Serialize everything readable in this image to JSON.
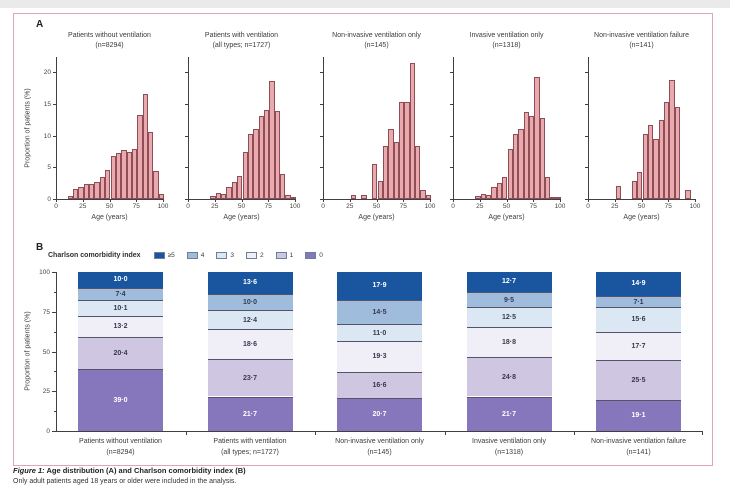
{
  "page": {
    "panel_a_label": "A",
    "panel_b_label": "B",
    "caption": {
      "figure_label": "Figure 1:",
      "title": " Age distribution (A) and Charlson comorbidity index (B)",
      "note": "Only adult patients aged 18 years or older were included in the analysis."
    }
  },
  "colors": {
    "figure_border": "#dfa6b0",
    "histogram_fill": "#e9a9ad",
    "histogram_stroke": "#8e4e58",
    "axis": "#404040",
    "cci_ge5": "#1a56a0",
    "cci_4": "#9fbcdc",
    "cci_3": "#dbe7f3",
    "cci_2": "#f0eef7",
    "cci_1": "#cfc6e2",
    "cci_0": "#8677bd",
    "segment_divider": "#53536a"
  },
  "chart_data": [
    {
      "type": "bar",
      "subtype": "histogram_small_multiples",
      "xlabel": "Age (years)",
      "ylabel": "Proportion of patients (%)",
      "xlim": [
        0,
        100
      ],
      "ylim": [
        0,
        22.5
      ],
      "xticks": [
        0,
        25,
        50,
        75,
        100
      ],
      "yticks": [
        0,
        5,
        10,
        15,
        20
      ],
      "bin_width_years": 5,
      "grid": false,
      "panels": [
        {
          "title": "Patients without ventilation",
          "subtitle": "(n=8294)",
          "bin_starts": [
            10,
            15,
            20,
            25,
            30,
            35,
            40,
            45,
            50,
            55,
            60,
            65,
            70,
            75,
            80,
            85,
            90,
            95
          ],
          "values_pct": [
            0.4,
            1.5,
            1.9,
            2.3,
            2.4,
            2.7,
            3.5,
            4.6,
            6.8,
            7.3,
            7.7,
            7.4,
            7.8,
            13.2,
            16.5,
            10.6,
            4.4,
            0.8
          ]
        },
        {
          "title": "Patients with ventilation",
          "subtitle": "(all types; n=1727)",
          "bin_starts": [
            20,
            25,
            30,
            35,
            40,
            45,
            50,
            55,
            60,
            65,
            70,
            75,
            80,
            85,
            90,
            95
          ],
          "values_pct": [
            0.5,
            0.9,
            0.8,
            1.9,
            2.7,
            3.7,
            7.4,
            10.2,
            11.1,
            13.0,
            14.0,
            18.6,
            13.9,
            4.0,
            0.7,
            0.3
          ]
        },
        {
          "title": "Non-invasive ventilation only",
          "subtitle": "(n=145)",
          "bin_starts": [
            25,
            30,
            35,
            40,
            45,
            50,
            55,
            60,
            65,
            70,
            75,
            80,
            85,
            90,
            95
          ],
          "values_pct": [
            0.7,
            0,
            0.7,
            0,
            5.5,
            2.8,
            8.3,
            11.0,
            9.0,
            15.2,
            15.2,
            21.4,
            8.3,
            1.4,
            0.7
          ]
        },
        {
          "title": "Invasive ventilation only",
          "subtitle": "(n=1318)",
          "bin_starts": [
            20,
            25,
            30,
            35,
            40,
            45,
            50,
            55,
            60,
            65,
            70,
            75,
            80,
            85,
            90,
            95
          ],
          "values_pct": [
            0.4,
            0.8,
            0.6,
            1.9,
            2.6,
            3.5,
            7.9,
            10.2,
            11.0,
            13.7,
            13.1,
            19.2,
            12.7,
            3.4,
            0.3,
            0.1
          ]
        },
        {
          "title": "Non-invasive ventilation failure",
          "subtitle": "(n=141)",
          "bin_starts": [
            25,
            30,
            35,
            40,
            45,
            50,
            55,
            60,
            65,
            70,
            75,
            80,
            85,
            90
          ],
          "values_pct": [
            2.1,
            0,
            0,
            2.8,
            4.3,
            10.2,
            11.7,
            9.5,
            12.4,
            15.2,
            18.8,
            14.5,
            0,
            1.4
          ]
        }
      ]
    },
    {
      "type": "bar",
      "subtype": "stacked_percent",
      "legend_title": "Charlson comorbidity index",
      "legend": [
        {
          "label": "≥5",
          "color_key": "cci_ge5"
        },
        {
          "label": "4",
          "color_key": "cci_4"
        },
        {
          "label": "3",
          "color_key": "cci_3"
        },
        {
          "label": "2",
          "color_key": "cci_2"
        },
        {
          "label": "1",
          "color_key": "cci_1"
        },
        {
          "label": "0",
          "color_key": "cci_0"
        }
      ],
      "ylabel": "Proportion of patients (%)",
      "ylim": [
        0,
        100
      ],
      "yticks": [
        0,
        25,
        50,
        75,
        100
      ],
      "yticks_minor": [
        12.5,
        37.5,
        62.5,
        87.5
      ],
      "categories": [
        {
          "label": "Patients without ventilation",
          "sublabel": "(n=8294)"
        },
        {
          "label": "Patients with ventilation",
          "sublabel": "(all types; n=1727)"
        },
        {
          "label": "Non-invasive ventilation only",
          "sublabel": "(n=145)"
        },
        {
          "label": "Invasive ventilation only",
          "sublabel": "(n=1318)"
        },
        {
          "label": "Non-invasive ventilation failure",
          "sublabel": "(n=141)"
        }
      ],
      "series": [
        {
          "name": "≥5",
          "color_key": "cci_ge5",
          "label_tone": "light",
          "values": [
            10.0,
            13.6,
            17.9,
            12.7,
            14.9
          ],
          "labels": [
            "10·0",
            "13·6",
            "17·9",
            "12·7",
            "14·9"
          ]
        },
        {
          "name": "4",
          "color_key": "cci_4",
          "label_tone": "dark",
          "values": [
            7.4,
            10.0,
            14.5,
            9.5,
            7.1
          ],
          "labels": [
            "7·4",
            "10·0",
            "14·5",
            "9·5",
            "7·1"
          ]
        },
        {
          "name": "3",
          "color_key": "cci_3",
          "label_tone": "dark",
          "values": [
            10.1,
            12.4,
            11.0,
            12.5,
            15.6
          ],
          "labels": [
            "10·1",
            "12·4",
            "11·0",
            "12·5",
            "15·6"
          ]
        },
        {
          "name": "2",
          "color_key": "cci_2",
          "label_tone": "dark",
          "values": [
            13.2,
            18.6,
            19.3,
            18.8,
            17.7
          ],
          "labels": [
            "13·2",
            "18·6",
            "19·3",
            "18·8",
            "17·7"
          ]
        },
        {
          "name": "1",
          "color_key": "cci_1",
          "label_tone": "dark",
          "values": [
            20.4,
            23.7,
            16.6,
            24.8,
            25.5
          ],
          "labels": [
            "20·4",
            "23·7",
            "16·6",
            "24·8",
            "25·5"
          ]
        },
        {
          "name": "0",
          "color_key": "cci_0",
          "label_tone": "light",
          "values": [
            39.0,
            21.7,
            20.7,
            21.7,
            19.1
          ],
          "labels": [
            "39·0",
            "21·7",
            "20·7",
            "21·7",
            "19·1"
          ]
        }
      ]
    }
  ]
}
